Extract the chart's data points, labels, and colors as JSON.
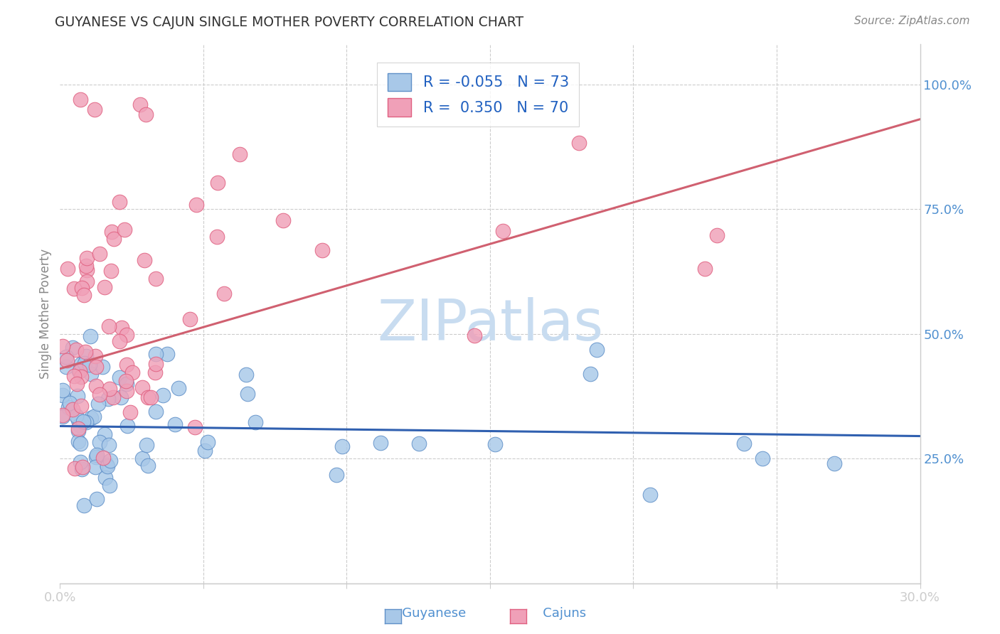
{
  "title": "GUYANESE VS CAJUN SINGLE MOTHER POVERTY CORRELATION CHART",
  "source": "Source: ZipAtlas.com",
  "ylabel": "Single Mother Poverty",
  "legend_label1": "R = -0.055   N = 73",
  "legend_label2": "R =  0.350   N = 70",
  "legend_name1": "Guyanese",
  "legend_name2": "Cajuns",
  "guyanese_fill": "#A8C8E8",
  "cajun_fill": "#F0A0B8",
  "guyanese_edge": "#6090C8",
  "cajun_edge": "#E06080",
  "guyanese_line": "#3060B0",
  "cajun_line": "#D06070",
  "watermark_color": "#C8DCF0",
  "grid_color": "#CCCCCC",
  "right_tick_color": "#5090D0",
  "title_color": "#333333",
  "source_color": "#888888",
  "ylabel_color": "#888888",
  "xtick_color": "#5090D0",
  "blue_line_x0": 0.0,
  "blue_line_y0": 0.315,
  "blue_line_x1": 0.3,
  "blue_line_y1": 0.295,
  "pink_line_x0": 0.0,
  "pink_line_y0": 0.43,
  "pink_line_x1": 0.3,
  "pink_line_y1": 0.93,
  "x_min": 0.0,
  "x_max": 0.3,
  "y_min": 0.0,
  "y_max": 1.08
}
